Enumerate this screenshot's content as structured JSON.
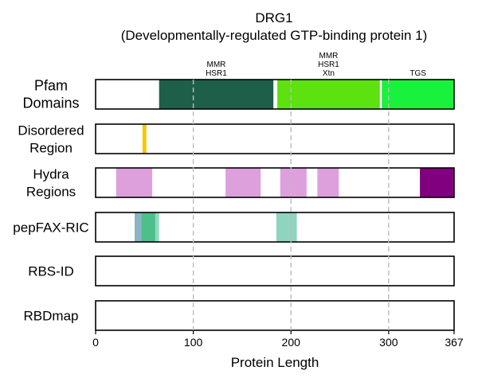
{
  "chart_data": {
    "type": "track",
    "title_line1": "DRG1",
    "title_line2": "(Developmentally-regulated GTP-binding protein 1)",
    "xlabel": "Protein Length",
    "xlim": [
      0,
      367
    ],
    "xticks": [
      0,
      100,
      200,
      300,
      367
    ],
    "xtick_labels": [
      "0",
      "100",
      "200",
      "300",
      "367"
    ],
    "gridlines": [
      100,
      200,
      300
    ],
    "tracks": [
      {
        "key": "pfam",
        "label_lines": [
          "Pfam",
          "Domains"
        ],
        "segments": [
          {
            "start": 65,
            "end": 182,
            "color": "#1e5f4a",
            "label_lines": [
              "MMR",
              "HSR1"
            ]
          },
          {
            "start": 186,
            "end": 291,
            "color": "#5de20f",
            "label_lines": [
              "MMR",
              "HSR1",
              "Xtn"
            ]
          },
          {
            "start": 293,
            "end": 367,
            "color": "#19f23d",
            "label_lines": [
              "TGS"
            ]
          }
        ]
      },
      {
        "key": "disordered",
        "label_lines": [
          "Disordered",
          "Region"
        ],
        "segments": [
          {
            "start": 48,
            "end": 52,
            "color": "#f5c800"
          }
        ]
      },
      {
        "key": "hydra",
        "label_lines": [
          "Hydra",
          "Regions"
        ],
        "segments": [
          {
            "start": 21,
            "end": 58,
            "color": "#dda0dd"
          },
          {
            "start": 133,
            "end": 169,
            "color": "#dda0dd"
          },
          {
            "start": 189,
            "end": 216,
            "color": "#dda0dd"
          },
          {
            "start": 227,
            "end": 249,
            "color": "#dda0dd"
          },
          {
            "start": 332,
            "end": 367,
            "color": "#800080"
          }
        ]
      },
      {
        "key": "pepfax",
        "label_lines": [
          "pepFAX-RIC"
        ],
        "segments": [
          {
            "start": 40,
            "end": 65,
            "color": "#8fdcbf"
          },
          {
            "start": 40,
            "end": 47,
            "color": "#8ab4c4"
          },
          {
            "start": 47,
            "end": 61,
            "color": "#4cbf8a"
          },
          {
            "start": 185,
            "end": 206,
            "color": "#8fd4bf"
          }
        ]
      },
      {
        "key": "rbsid",
        "label_lines": [
          "RBS-ID"
        ],
        "segments": []
      },
      {
        "key": "rbdmap",
        "label_lines": [
          "RBDmap"
        ],
        "segments": []
      }
    ]
  }
}
